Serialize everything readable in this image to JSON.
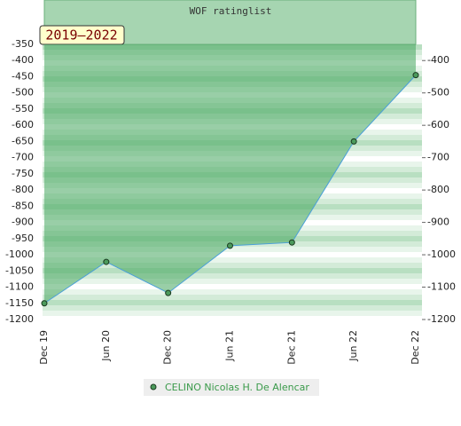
{
  "chart_data": {
    "type": "line",
    "title": "WOF ratinglist",
    "subtitle": "2019–2022",
    "categories": [
      "Dec 19",
      "Jun 20",
      "Dec 20",
      "Jun 21",
      "Dec 21",
      "Jun 22",
      "Dec 22"
    ],
    "series": [
      {
        "name": "CELINO Nicolas H. De Alencar",
        "color": "#4a9fd8",
        "values": [
          -1150,
          -1022,
          -1118,
          -972,
          -962,
          -650,
          -445
        ]
      }
    ],
    "ylim": [
      -350,
      -1200
    ],
    "yticks": [
      -350,
      -400,
      -450,
      -500,
      -550,
      -600,
      -650,
      -700,
      -750,
      -800,
      -850,
      -900,
      -950,
      -1000,
      -1050,
      -1100,
      -1150,
      -1200
    ],
    "y2lim": [
      -350,
      -1200
    ],
    "y2ticks": [
      -400,
      -500,
      -600,
      -700,
      -800,
      -900,
      -1000,
      -1100,
      -1200
    ]
  }
}
